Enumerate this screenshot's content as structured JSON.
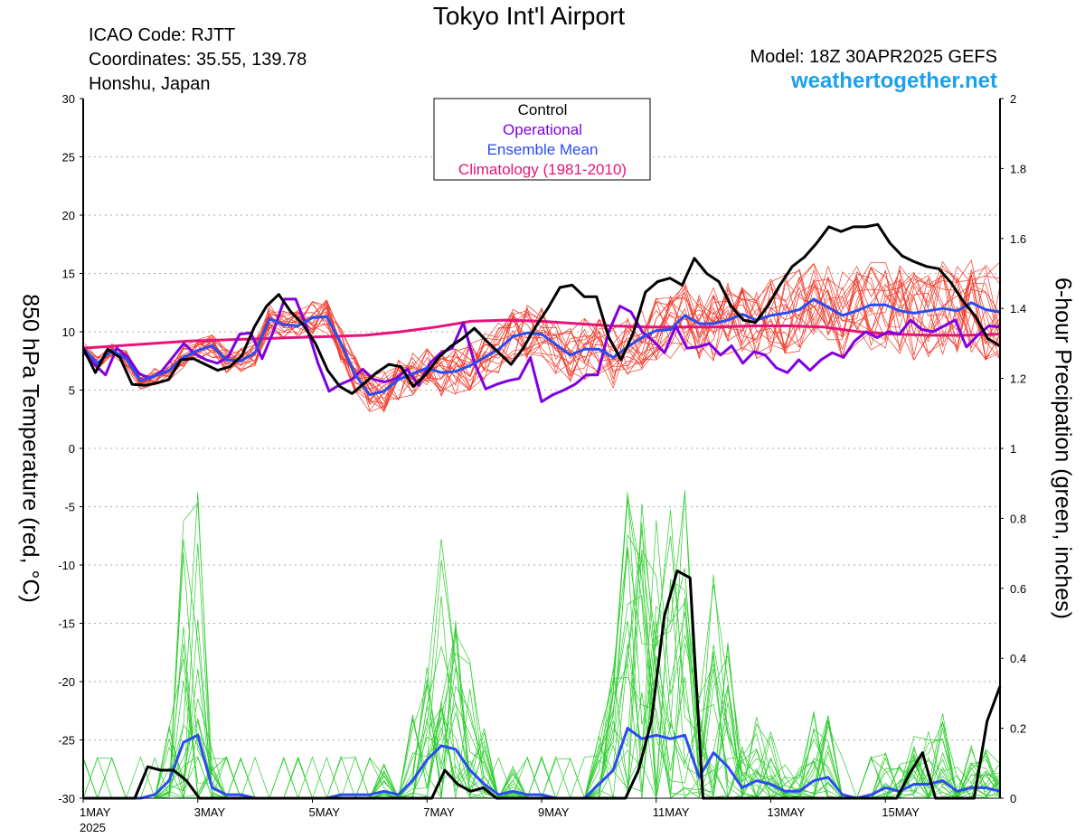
{
  "header": {
    "title": "Tokyo Int'l Airport",
    "icao": "ICAO Code: RJTT",
    "coords": "Coordinates: 35.55, 139.78",
    "region": "Honshu, Japan",
    "model": "Model: 18Z 30APR2025 GEFS",
    "site": "weathertogether.net"
  },
  "chart_data": {
    "type": "line",
    "title": "Tokyo Int'l Airport",
    "ylabel_left": "850 hPa Temperature (red, °C)",
    "ylabel_right": "6-hour Precipation (green, inches)",
    "ylim_left": [
      -30,
      30
    ],
    "ylim_right": [
      0,
      2
    ],
    "xlim_days": [
      1.0,
      17.0
    ],
    "x_ticks": [
      {
        "label": "1MAY",
        "day": 1
      },
      {
        "label": "3MAY",
        "day": 3
      },
      {
        "label": "5MAY",
        "day": 5
      },
      {
        "label": "7MAY",
        "day": 7
      },
      {
        "label": "9MAY",
        "day": 9
      },
      {
        "label": "11MAY",
        "day": 11
      },
      {
        "label": "13MAY",
        "day": 13
      },
      {
        "label": "15MAY",
        "day": 15
      }
    ],
    "year_label": "2025",
    "y_ticks_left": [
      "30",
      "25",
      "20",
      "15",
      "10",
      "5",
      "0",
      "-5",
      "-10",
      "-15",
      "-20",
      "-25",
      "-30"
    ],
    "y_ticks_right": [
      "2",
      "1.8",
      "1.6",
      "1.4",
      "1.2",
      "1",
      "0.8",
      "0.6",
      "0.4",
      "0.2",
      "0"
    ],
    "grid": true,
    "legend": [
      {
        "name": "Control",
        "color": "#000000"
      },
      {
        "name": "Operational",
        "color": "#8000e0"
      },
      {
        "name": "Ensemble Mean",
        "color": "#2a4cf0"
      },
      {
        "name": "Climatology (1981-2010)",
        "color": "#e8127a"
      }
    ],
    "legend_position": "top-center",
    "series": [
      {
        "name": "Control",
        "axis": "left",
        "color": "#000000",
        "values": [
          8.6,
          6.5,
          8.5,
          7.8,
          5.5,
          5.4,
          5.6,
          5.9,
          7.6,
          7.7,
          7.2,
          6.7,
          7.0,
          8.0,
          10.4,
          12.2,
          13.2,
          11.7,
          10.6,
          9.0,
          6.7,
          5.3,
          4.7,
          5.6,
          6.5,
          7.2,
          7.0,
          5.3,
          6.3,
          7.7,
          8.7,
          9.4,
          10.3,
          9.2,
          8.2,
          7.2,
          8.6,
          10.4,
          12.0,
          13.8,
          14.0,
          13.0,
          13.0,
          9.5,
          7.6,
          9.9,
          13.4,
          14.3,
          14.6,
          14.0,
          16.3,
          15.0,
          14.3,
          12.2,
          11.0,
          10.8,
          12.2,
          14.0,
          15.6,
          16.4,
          17.6,
          19.0,
          18.6,
          19.0,
          19.0,
          19.2,
          17.6,
          16.5,
          16.0,
          15.6,
          15.4,
          14.2,
          12.6,
          11.3,
          9.4,
          8.8
        ]
      },
      {
        "name": "Operational",
        "axis": "left",
        "color": "#8000e0",
        "values": [
          8.3,
          7.2,
          6.3,
          8.6,
          7.8,
          6.4,
          6.0,
          6.6,
          7.8,
          9.0,
          8.1,
          7.6,
          7.3,
          7.9,
          9.8,
          9.9,
          7.7,
          10.0,
          12.8,
          12.8,
          10.4,
          7.3,
          4.9,
          5.5,
          5.9,
          6.8,
          5.9,
          5.7,
          6.0,
          6.8,
          5.4,
          7.3,
          8.2,
          8.6,
          10.8,
          7.3,
          5.1,
          5.5,
          5.8,
          6.0,
          7.8,
          4.0,
          4.6,
          5.0,
          5.5,
          6.3,
          6.3,
          10.0,
          12.2,
          11.7,
          10.0,
          9.2,
          8.2,
          10.5,
          8.6,
          8.7,
          9.0,
          8.0,
          8.8,
          7.3,
          8.3,
          8.0,
          6.9,
          6.5,
          7.6,
          6.7,
          7.6,
          8.2,
          7.8,
          9.2,
          10.0,
          9.5,
          10.0,
          9.8,
          11.0,
          10.2,
          10.0,
          10.5,
          11.0,
          8.7,
          9.7,
          10.5,
          10.4
        ]
      },
      {
        "name": "Ensemble Mean",
        "axis": "left",
        "color": "#2a4cf0",
        "values": [
          8.6,
          7.3,
          8.4,
          7.7,
          5.8,
          6.2,
          6.7,
          7.8,
          8.4,
          8.8,
          7.6,
          7.5,
          8.2,
          11.1,
          10.6,
          10.5,
          11.2,
          11.3,
          9.0,
          6.3,
          4.6,
          4.9,
          5.9,
          6.4,
          6.9,
          6.5,
          6.6,
          7.1,
          7.8,
          8.5,
          9.6,
          9.9,
          9.8,
          8.9,
          8.0,
          8.5,
          8.5,
          7.8,
          8.7,
          9.5,
          10.1,
          10.2,
          11.4,
          10.7,
          10.7,
          11.0,
          11.5,
          11.0,
          11.4,
          11.6,
          11.9,
          12.8,
          12.1,
          11.4,
          11.8,
          12.3,
          12.3,
          11.8,
          11.6,
          11.8,
          12.0,
          11.8,
          12.5,
          11.9,
          11.7
        ]
      },
      {
        "name": "Climatology (1981-2010)",
        "axis": "left",
        "color": "#e8127a",
        "values": [
          8.6,
          8.8,
          9.0,
          9.2,
          9.3,
          9.4,
          9.5,
          9.6,
          9.7,
          10.0,
          10.4,
          10.9,
          11.0,
          10.9,
          10.7,
          10.5,
          10.4,
          10.4,
          10.4,
          10.5,
          10.5,
          10.4,
          10.0,
          9.8,
          9.7,
          9.7,
          9.8
        ]
      },
      {
        "name": "Control precip",
        "axis": "right",
        "color": "#000000",
        "values": [
          0,
          0,
          0,
          0,
          0,
          0.09,
          0.08,
          0.08,
          0.05,
          0,
          0,
          0,
          0,
          0,
          0,
          0,
          0,
          0,
          0,
          0,
          0,
          0,
          0,
          0,
          0,
          0,
          0,
          0,
          0.08,
          0.04,
          0.02,
          0.03,
          0,
          0,
          0,
          0,
          0,
          0,
          0,
          0,
          0,
          0,
          0,
          0.08,
          0.22,
          0.52,
          0.65,
          0.63,
          0,
          0,
          0,
          0,
          0,
          0,
          0,
          0,
          0,
          0,
          0,
          0,
          0,
          0,
          0,
          0,
          0.07,
          0.13,
          0,
          0,
          0,
          0,
          0.22,
          0.32
        ]
      },
      {
        "name": "Ensemble Mean precip",
        "axis": "right",
        "color": "#2a4cf0",
        "values": [
          0,
          0,
          0,
          0,
          0,
          0.01,
          0.05,
          0.16,
          0.18,
          0.03,
          0.01,
          0.01,
          0,
          0,
          0,
          0,
          0,
          0,
          0.01,
          0.01,
          0.01,
          0.02,
          0.01,
          0.05,
          0.11,
          0.15,
          0.14,
          0.08,
          0.04,
          0.01,
          0.02,
          0.01,
          0.01,
          0,
          0,
          0,
          0.04,
          0.08,
          0.2,
          0.17,
          0.18,
          0.17,
          0.18,
          0.06,
          0.13,
          0.09,
          0.03,
          0.05,
          0.04,
          0.02,
          0.02,
          0.05,
          0.06,
          0.01,
          0,
          0.01,
          0.03,
          0.02,
          0.04,
          0.04,
          0.05,
          0.02,
          0.03,
          0.03,
          0.02
        ]
      }
    ]
  },
  "colors": {
    "ensemble_temp": "#f03a2a",
    "ensemble_precip": "#2ccc2c",
    "grid": "#aaaaaa",
    "site_link": "#1ba0ef"
  }
}
